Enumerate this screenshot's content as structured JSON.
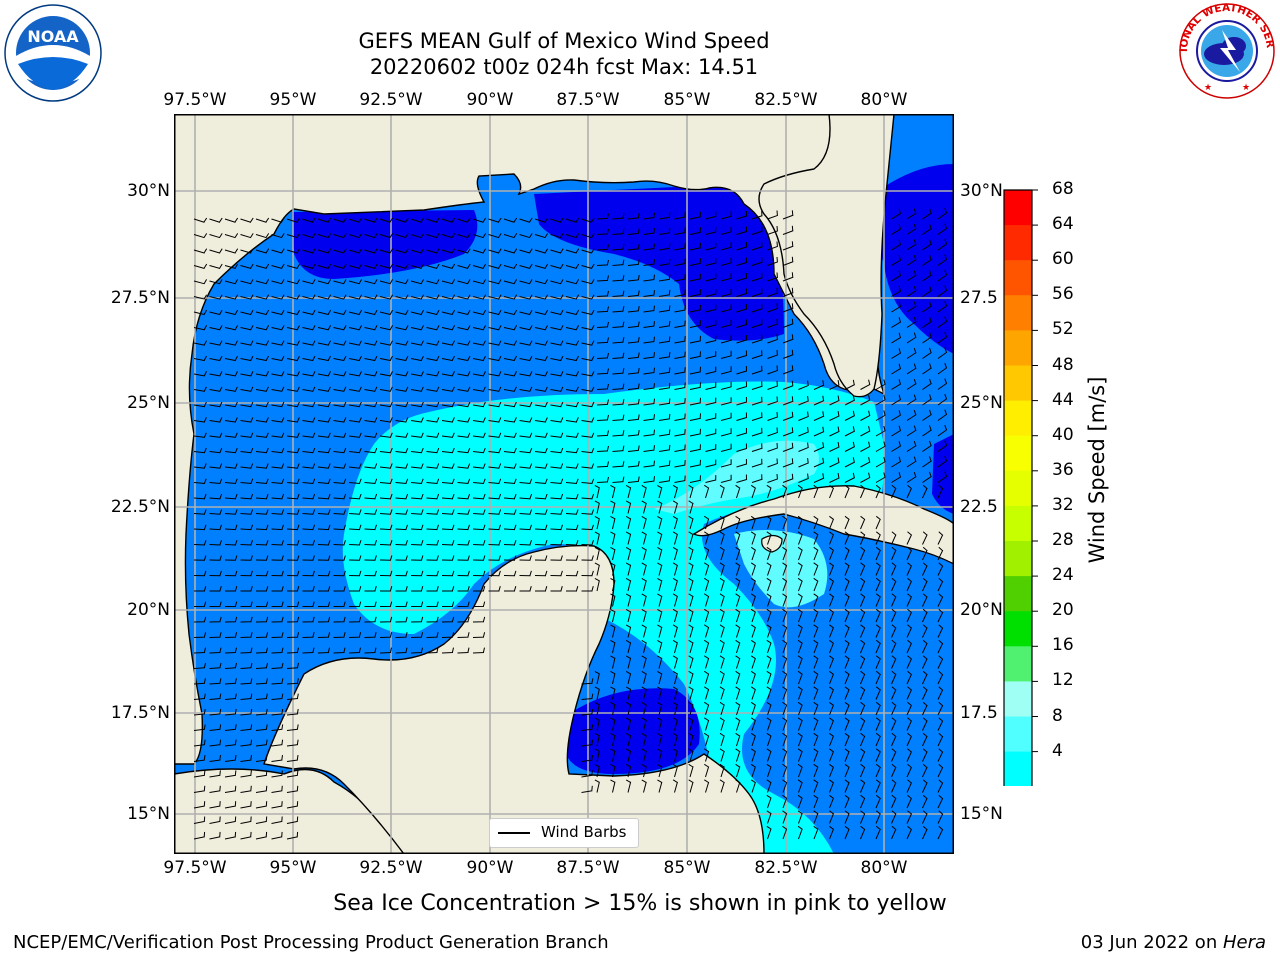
{
  "title": {
    "line1": "GEFS MEAN Gulf of Mexico Wind Speed",
    "line2": "20220602 t00z 024h fcst   Max: 14.51"
  },
  "axes": {
    "lon_labels": [
      "97.5°W",
      "95°W",
      "92.5°W",
      "90°W",
      "87.5°W",
      "85°W",
      "82.5°W",
      "80°W"
    ],
    "lat_labels_left": [
      "30°N",
      "27.5°N",
      "25°N",
      "22.5°N",
      "20°N",
      "17.5°N",
      "15°N"
    ],
    "lat_labels_right": [
      "30°N",
      "27.5",
      "25°N",
      "22.5",
      "20°N",
      "17.5",
      "15°N"
    ]
  },
  "legend": {
    "wind_barbs_label": "Wind Barbs"
  },
  "colorbar": {
    "label": "Wind Speed [m/s]",
    "ticks": [
      "68",
      "64",
      "60",
      "56",
      "52",
      "48",
      "44",
      "40",
      "36",
      "32",
      "28",
      "24",
      "20",
      "16",
      "12",
      "8",
      "4"
    ],
    "colors": [
      "#ff0000",
      "#ff2a00",
      "#ff5500",
      "#ff8000",
      "#ffa500",
      "#ffc800",
      "#ffee00",
      "#f7ff00",
      "#e6ff00",
      "#c8ff00",
      "#a0f000",
      "#50d000",
      "#00e000",
      "#50f070",
      "#9ffff4",
      "#50ffff",
      "#00ffff",
      "#0080ff",
      "#0000ff"
    ]
  },
  "caption": "Sea Ice Concentration > 15% is shown in pink to yellow",
  "footer": {
    "left": "NCEP/EMC/Verification Post Processing Product Generation Branch",
    "right_date": "03 Jun 2022 on ",
    "right_machine": "Hera"
  },
  "logos": {
    "noaa_text": "NOAA",
    "nws_text": "NATIONAL WEATHER SERVICE"
  },
  "colors": {
    "land": "#efeddc",
    "speed_4_8": "#0080ff",
    "speed_below_4": "#0000ee",
    "speed_8_12": "#00ffff",
    "speed_12_16": "#60fcff"
  }
}
